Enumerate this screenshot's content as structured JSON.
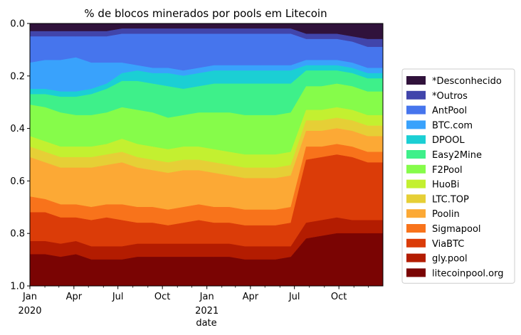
{
  "chart_data": {
    "type": "area",
    "stacked": true,
    "normalized": true,
    "title": "% de blocos minerados por pools em Litecoin",
    "xlabel": "date",
    "ylabel": "",
    "ylim": [
      1.0,
      0.0
    ],
    "y_inverted": true,
    "yticks": [
      "0.0",
      "0.2",
      "0.4",
      "0.6",
      "0.8",
      "1.0"
    ],
    "xlim": [
      "2020-01-01",
      "2021-12-31"
    ],
    "xticks": [
      {
        "date": "2020-01-01",
        "label": "Jan",
        "sublabel": "2020"
      },
      {
        "date": "2020-04-01",
        "label": "Apr",
        "sublabel": ""
      },
      {
        "date": "2020-07-01",
        "label": "Jul",
        "sublabel": ""
      },
      {
        "date": "2020-10-01",
        "label": "Oct",
        "sublabel": ""
      },
      {
        "date": "2021-01-01",
        "label": "Jan",
        "sublabel": "2021"
      },
      {
        "date": "2021-04-01",
        "label": "Apr",
        "sublabel": ""
      },
      {
        "date": "2021-07-01",
        "label": "Jul",
        "sublabel": ""
      },
      {
        "date": "2021-10-01",
        "label": "Oct",
        "sublabel": ""
      }
    ],
    "grid": false,
    "legend_position": "right",
    "x": [
      "2020-01",
      "2020-02",
      "2020-03",
      "2020-04",
      "2020-05",
      "2020-06",
      "2020-07",
      "2020-08",
      "2020-09",
      "2020-10",
      "2020-11",
      "2020-12",
      "2021-01",
      "2021-02",
      "2021-03",
      "2021-04",
      "2021-05",
      "2021-06",
      "2021-07",
      "2021-08",
      "2021-09",
      "2021-10",
      "2021-11",
      "2021-12"
    ],
    "series": [
      {
        "name": "*Desconhecido",
        "color": "#30123b",
        "values": [
          0.03,
          0.03,
          0.03,
          0.03,
          0.03,
          0.03,
          0.02,
          0.02,
          0.02,
          0.02,
          0.02,
          0.02,
          0.02,
          0.02,
          0.02,
          0.02,
          0.02,
          0.02,
          0.04,
          0.04,
          0.04,
          0.05,
          0.06,
          0.06
        ]
      },
      {
        "name": "*Outros",
        "color": "#4145ab",
        "values": [
          0.02,
          0.02,
          0.02,
          0.02,
          0.02,
          0.02,
          0.02,
          0.02,
          0.02,
          0.02,
          0.02,
          0.02,
          0.02,
          0.02,
          0.02,
          0.02,
          0.02,
          0.02,
          0.02,
          0.02,
          0.02,
          0.02,
          0.03,
          0.03
        ]
      },
      {
        "name": "AntPool",
        "color": "#4675ed",
        "values": [
          0.1,
          0.09,
          0.09,
          0.08,
          0.1,
          0.1,
          0.11,
          0.12,
          0.13,
          0.13,
          0.14,
          0.13,
          0.12,
          0.12,
          0.12,
          0.12,
          0.12,
          0.12,
          0.08,
          0.08,
          0.08,
          0.08,
          0.08,
          0.08
        ]
      },
      {
        "name": "BTC.com",
        "color": "#39a2fc",
        "values": [
          0.1,
          0.11,
          0.12,
          0.13,
          0.1,
          0.08,
          0.04,
          0.02,
          0.02,
          0.02,
          0.02,
          0.02,
          0.02,
          0.02,
          0.02,
          0.02,
          0.02,
          0.02,
          0.02,
          0.02,
          0.02,
          0.02,
          0.02,
          0.02
        ]
      },
      {
        "name": "DPOOL",
        "color": "#1bcfd4",
        "values": [
          0.02,
          0.02,
          0.02,
          0.02,
          0.02,
          0.02,
          0.03,
          0.04,
          0.04,
          0.05,
          0.05,
          0.05,
          0.05,
          0.05,
          0.05,
          0.05,
          0.05,
          0.05,
          0.02,
          0.02,
          0.02,
          0.02,
          0.02,
          0.02
        ]
      },
      {
        "name": "Easy2Mine",
        "color": "#3ef08a",
        "values": [
          0.04,
          0.05,
          0.06,
          0.07,
          0.08,
          0.09,
          0.1,
          0.11,
          0.11,
          0.12,
          0.1,
          0.1,
          0.11,
          0.11,
          0.12,
          0.12,
          0.12,
          0.11,
          0.06,
          0.06,
          0.05,
          0.05,
          0.05,
          0.05
        ]
      },
      {
        "name": "F2Pool",
        "color": "#86fc4a",
        "values": [
          0.12,
          0.13,
          0.13,
          0.12,
          0.12,
          0.12,
          0.12,
          0.13,
          0.13,
          0.12,
          0.12,
          0.13,
          0.14,
          0.15,
          0.15,
          0.15,
          0.15,
          0.15,
          0.09,
          0.09,
          0.09,
          0.09,
          0.09,
          0.09
        ]
      },
      {
        "name": "HuoBi",
        "color": "#c3f030",
        "values": [
          0.04,
          0.04,
          0.04,
          0.04,
          0.04,
          0.04,
          0.05,
          0.05,
          0.05,
          0.05,
          0.05,
          0.05,
          0.05,
          0.05,
          0.05,
          0.05,
          0.05,
          0.05,
          0.04,
          0.04,
          0.04,
          0.04,
          0.04,
          0.04
        ]
      },
      {
        "name": "LTC.TOP",
        "color": "#e6cf36",
        "values": [
          0.04,
          0.04,
          0.04,
          0.04,
          0.04,
          0.04,
          0.04,
          0.04,
          0.04,
          0.04,
          0.04,
          0.04,
          0.04,
          0.04,
          0.04,
          0.04,
          0.04,
          0.04,
          0.04,
          0.04,
          0.04,
          0.04,
          0.04,
          0.04
        ]
      },
      {
        "name": "Poolin",
        "color": "#fca935",
        "values": [
          0.15,
          0.14,
          0.14,
          0.14,
          0.15,
          0.15,
          0.16,
          0.15,
          0.14,
          0.14,
          0.14,
          0.13,
          0.13,
          0.12,
          0.12,
          0.12,
          0.12,
          0.12,
          0.06,
          0.06,
          0.06,
          0.06,
          0.06,
          0.06
        ]
      },
      {
        "name": "Sigmapool",
        "color": "#f8731b",
        "values": [
          0.06,
          0.05,
          0.05,
          0.05,
          0.05,
          0.05,
          0.06,
          0.06,
          0.06,
          0.06,
          0.06,
          0.06,
          0.06,
          0.06,
          0.06,
          0.06,
          0.06,
          0.06,
          0.05,
          0.04,
          0.04,
          0.04,
          0.04,
          0.04
        ]
      },
      {
        "name": "ViaBTC",
        "color": "#db3c08",
        "values": [
          0.11,
          0.11,
          0.1,
          0.09,
          0.1,
          0.11,
          0.1,
          0.08,
          0.08,
          0.07,
          0.08,
          0.09,
          0.08,
          0.08,
          0.08,
          0.08,
          0.08,
          0.09,
          0.24,
          0.24,
          0.24,
          0.24,
          0.22,
          0.22
        ]
      },
      {
        "name": "gly.pool",
        "color": "#b31c01",
        "values": [
          0.05,
          0.05,
          0.05,
          0.05,
          0.05,
          0.05,
          0.05,
          0.05,
          0.05,
          0.05,
          0.05,
          0.05,
          0.05,
          0.05,
          0.05,
          0.05,
          0.05,
          0.04,
          0.06,
          0.06,
          0.06,
          0.05,
          0.05,
          0.05
        ]
      },
      {
        "name": "litecoinpool.org",
        "color": "#7a0403",
        "values": [
          0.12,
          0.12,
          0.11,
          0.12,
          0.1,
          0.1,
          0.1,
          0.11,
          0.11,
          0.11,
          0.11,
          0.11,
          0.11,
          0.11,
          0.1,
          0.1,
          0.1,
          0.11,
          0.18,
          0.19,
          0.2,
          0.2,
          0.2,
          0.2
        ]
      }
    ]
  }
}
